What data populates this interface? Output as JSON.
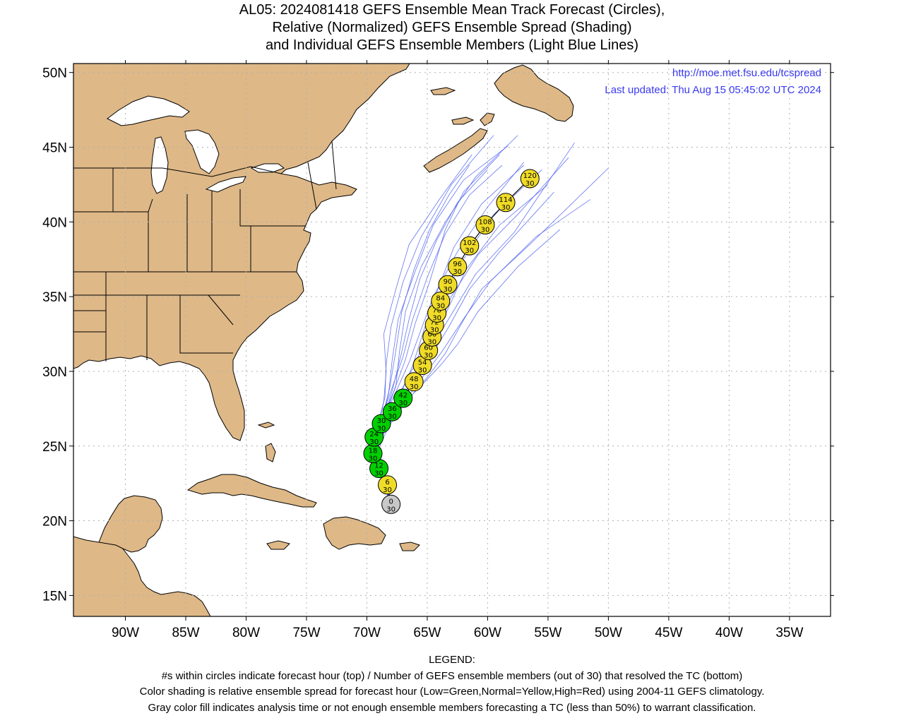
{
  "title": {
    "line1": "AL05: 2024081418 GEFS Ensemble Mean Track Forecast (Circles),",
    "line2": "Relative (Normalized) GEFS Ensemble Spread (Shading)",
    "line3": "and Individual GEFS Ensemble Members (Light Blue Lines)"
  },
  "credits": {
    "url": "http://moe.met.fsu.edu/tcspread",
    "updated": "Last updated: Thu Aug 15 05:45:02 UTC 2024"
  },
  "axes": {
    "lon_labels": [
      "90W",
      "85W",
      "80W",
      "75W",
      "70W",
      "65W",
      "60W",
      "55W",
      "50W",
      "45W",
      "40W",
      "35W"
    ],
    "lon_values": [
      -90,
      -85,
      -80,
      -75,
      -70,
      -65,
      -60,
      -55,
      -50,
      -45,
      -40,
      -35
    ],
    "lat_labels": [
      "50N",
      "45N",
      "40N",
      "35N",
      "30N",
      "25N",
      "20N",
      "15N"
    ],
    "lat_values": [
      50,
      45,
      40,
      35,
      30,
      25,
      20,
      15
    ],
    "lon_range": [
      -94.3,
      -31.6
    ],
    "lat_range": [
      13.6,
      50.6
    ],
    "grid": true
  },
  "colors": {
    "land": "#deb887",
    "ocean": "#ffffff",
    "grid": "#b0b0b0",
    "member_lines": "#4a5ef0",
    "track_line": "#000000",
    "credit_text": "#3a3af0",
    "low_spread": "#00d000",
    "normal_spread": "#f0dc28",
    "high_spread": "#ff0000",
    "analysis": "#c8c8c8"
  },
  "track": [
    {
      "hour": "0",
      "members": "30",
      "lat": 21.1,
      "lon": -68.0,
      "spread": "analysis"
    },
    {
      "hour": "6",
      "members": "30",
      "lat": 22.4,
      "lon": -68.3,
      "spread": "normal"
    },
    {
      "hour": "12",
      "members": "30",
      "lat": 23.5,
      "lon": -69.0,
      "spread": "low"
    },
    {
      "hour": "18",
      "members": "30",
      "lat": 24.5,
      "lon": -69.5,
      "spread": "low"
    },
    {
      "hour": "24",
      "members": "30",
      "lat": 25.6,
      "lon": -69.4,
      "spread": "low"
    },
    {
      "hour": "30",
      "members": "30",
      "lat": 26.5,
      "lon": -68.8,
      "spread": "low"
    },
    {
      "hour": "36",
      "members": "30",
      "lat": 27.3,
      "lon": -67.9,
      "spread": "low"
    },
    {
      "hour": "42",
      "members": "30",
      "lat": 28.2,
      "lon": -67.0,
      "spread": "low"
    },
    {
      "hour": "48",
      "members": "30",
      "lat": 29.3,
      "lon": -66.1,
      "spread": "normal"
    },
    {
      "hour": "54",
      "members": "30",
      "lat": 30.4,
      "lon": -65.4,
      "spread": "normal"
    },
    {
      "hour": "60",
      "members": "30",
      "lat": 31.4,
      "lon": -64.9,
      "spread": "normal"
    },
    {
      "hour": "66",
      "members": "30",
      "lat": 32.3,
      "lon": -64.6,
      "spread": "normal"
    },
    {
      "hour": "72",
      "members": "30",
      "lat": 33.1,
      "lon": -64.4,
      "spread": "normal"
    },
    {
      "hour": "78",
      "members": "30",
      "lat": 33.9,
      "lon": -64.2,
      "spread": "normal"
    },
    {
      "hour": "84",
      "members": "30",
      "lat": 34.7,
      "lon": -63.9,
      "spread": "normal"
    },
    {
      "hour": "90",
      "members": "30",
      "lat": 35.8,
      "lon": -63.3,
      "spread": "normal"
    },
    {
      "hour": "96",
      "members": "30",
      "lat": 37.0,
      "lon": -62.5,
      "spread": "normal"
    },
    {
      "hour": "102",
      "members": "30",
      "lat": 38.4,
      "lon": -61.5,
      "spread": "normal"
    },
    {
      "hour": "108",
      "members": "30",
      "lat": 39.8,
      "lon": -60.2,
      "spread": "normal"
    },
    {
      "hour": "114",
      "members": "30",
      "lat": 41.3,
      "lon": -58.5,
      "spread": "normal"
    },
    {
      "hour": "120",
      "members": "30",
      "lat": 42.9,
      "lon": -56.5,
      "spread": "normal"
    }
  ],
  "members": [
    [
      [
        -68.0,
        21.1
      ],
      [
        -69.3,
        24.5
      ],
      [
        -69.0,
        26.5
      ],
      [
        -68.5,
        28.3
      ],
      [
        -68.4,
        30.5
      ],
      [
        -68.0,
        33.0
      ],
      [
        -67.0,
        36.0
      ],
      [
        -65.5,
        39.0
      ],
      [
        -63.0,
        42.5
      ],
      [
        -59.5,
        45.8
      ]
    ],
    [
      [
        -68.0,
        21.1
      ],
      [
        -69.4,
        24.5
      ],
      [
        -68.8,
        26.6
      ],
      [
        -68.2,
        28.5
      ],
      [
        -67.9,
        30.8
      ],
      [
        -67.4,
        33.5
      ],
      [
        -66.0,
        36.7
      ],
      [
        -64.5,
        39.8
      ],
      [
        -62.0,
        42.8
      ],
      [
        -58.3,
        45.1
      ]
    ],
    [
      [
        -68.0,
        21.1
      ],
      [
        -69.2,
        24.5
      ],
      [
        -68.6,
        26.8
      ],
      [
        -67.6,
        29.0
      ],
      [
        -67.3,
        31.3
      ],
      [
        -66.8,
        34.0
      ],
      [
        -65.5,
        37.0
      ],
      [
        -63.5,
        40.0
      ],
      [
        -61.0,
        43.0
      ],
      [
        -57.5,
        45.8
      ]
    ],
    [
      [
        -68.0,
        21.1
      ],
      [
        -69.5,
        24.6
      ],
      [
        -69.1,
        26.4
      ],
      [
        -68.6,
        28.0
      ],
      [
        -68.4,
        30.0
      ],
      [
        -68.6,
        32.5
      ],
      [
        -67.6,
        35.5
      ],
      [
        -66.5,
        38.5
      ],
      [
        -64.0,
        41.5
      ],
      [
        -61.3,
        44.5
      ]
    ],
    [
      [
        -68.0,
        21.1
      ],
      [
        -69.3,
        24.6
      ],
      [
        -68.9,
        26.5
      ],
      [
        -67.8,
        28.6
      ],
      [
        -66.8,
        30.8
      ],
      [
        -66.0,
        33.2
      ],
      [
        -64.8,
        36.0
      ],
      [
        -63.5,
        39.5
      ],
      [
        -62.0,
        42.0
      ],
      [
        -59.0,
        44.5
      ]
    ],
    [
      [
        -68.0,
        21.1
      ],
      [
        -69.6,
        24.5
      ],
      [
        -68.9,
        26.6
      ],
      [
        -68.0,
        28.7
      ],
      [
        -67.0,
        31.0
      ],
      [
        -66.2,
        33.5
      ],
      [
        -65.0,
        36.3
      ],
      [
        -63.5,
        39.2
      ],
      [
        -61.5,
        41.8
      ],
      [
        -58.8,
        43.8
      ]
    ],
    [
      [
        -68.0,
        21.1
      ],
      [
        -69.4,
        24.4
      ],
      [
        -68.7,
        26.7
      ],
      [
        -67.5,
        28.8
      ],
      [
        -66.5,
        30.6
      ],
      [
        -65.6,
        32.6
      ],
      [
        -64.5,
        35.0
      ],
      [
        -62.5,
        38.0
      ],
      [
        -60.0,
        41.0
      ],
      [
        -57.0,
        44.0
      ]
    ],
    [
      [
        -68.0,
        21.1
      ],
      [
        -69.2,
        24.6
      ],
      [
        -68.5,
        26.6
      ],
      [
        -67.3,
        28.5
      ],
      [
        -66.0,
        30.5
      ],
      [
        -65.0,
        32.5
      ],
      [
        -63.8,
        34.8
      ],
      [
        -62.0,
        37.5
      ],
      [
        -59.5,
        40.5
      ],
      [
        -55.5,
        43.5
      ]
    ],
    [
      [
        -68.0,
        21.1
      ],
      [
        -69.5,
        24.3
      ],
      [
        -68.6,
        26.4
      ],
      [
        -67.2,
        28.2
      ],
      [
        -65.8,
        29.8
      ],
      [
        -64.8,
        31.5
      ],
      [
        -63.5,
        33.8
      ],
      [
        -61.8,
        36.8
      ],
      [
        -59.0,
        39.8
      ],
      [
        -55.0,
        42.5
      ]
    ],
    [
      [
        -68.0,
        21.1
      ],
      [
        -69.3,
        24.5
      ],
      [
        -68.4,
        26.5
      ],
      [
        -67.0,
        28.4
      ],
      [
        -65.5,
        30.3
      ],
      [
        -64.3,
        32.5
      ],
      [
        -63.0,
        35.0
      ],
      [
        -60.8,
        37.8
      ],
      [
        -57.5,
        40.5
      ],
      [
        -53.3,
        44.3
      ]
    ],
    [
      [
        -68.0,
        21.1
      ],
      [
        -69.6,
        24.4
      ],
      [
        -68.6,
        26.3
      ],
      [
        -67.4,
        28.0
      ],
      [
        -66.0,
        29.5
      ],
      [
        -64.7,
        31.0
      ],
      [
        -63.2,
        33.0
      ],
      [
        -61.5,
        35.5
      ],
      [
        -59.0,
        38.0
      ],
      [
        -54.5,
        42.0
      ]
    ],
    [
      [
        -68.0,
        21.1
      ],
      [
        -69.4,
        24.6
      ],
      [
        -68.5,
        26.5
      ],
      [
        -67.1,
        28.3
      ],
      [
        -65.7,
        30.0
      ],
      [
        -64.5,
        31.8
      ],
      [
        -63.0,
        33.8
      ],
      [
        -61.0,
        36.5
      ],
      [
        -57.8,
        39.3
      ],
      [
        -52.8,
        45.3
      ]
    ],
    [
      [
        -68.0,
        21.1
      ],
      [
        -69.3,
        24.5
      ],
      [
        -68.3,
        26.4
      ],
      [
        -66.8,
        28.1
      ],
      [
        -65.3,
        29.7
      ],
      [
        -63.8,
        31.3
      ],
      [
        -62.0,
        33.5
      ],
      [
        -59.8,
        36.0
      ],
      [
        -56.0,
        39.0
      ],
      [
        -51.5,
        41.5
      ]
    ],
    [
      [
        -68.0,
        21.1
      ],
      [
        -69.5,
        24.5
      ],
      [
        -68.4,
        26.2
      ],
      [
        -66.9,
        27.9
      ],
      [
        -65.2,
        29.3
      ],
      [
        -63.8,
        30.5
      ],
      [
        -62.5,
        31.8
      ],
      [
        -60.8,
        34.0
      ],
      [
        -57.5,
        37.0
      ],
      [
        -54.0,
        39.5
      ]
    ],
    [
      [
        -68.0,
        21.1
      ],
      [
        -69.2,
        24.5
      ],
      [
        -68.2,
        26.3
      ],
      [
        -66.7,
        28.0
      ],
      [
        -65.0,
        29.6
      ],
      [
        -63.5,
        31.2
      ],
      [
        -62.3,
        33.0
      ],
      [
        -60.5,
        35.5
      ],
      [
        -56.5,
        38.5
      ],
      [
        -50.0,
        43.6
      ]
    ],
    [
      [
        -68.0,
        21.1
      ],
      [
        -69.4,
        24.5
      ],
      [
        -68.7,
        26.6
      ],
      [
        -67.9,
        28.7
      ],
      [
        -67.2,
        31.0
      ],
      [
        -66.5,
        33.5
      ],
      [
        -65.6,
        36.2
      ],
      [
        -64.2,
        38.8
      ],
      [
        -62.5,
        41.3
      ],
      [
        -60.0,
        43.5
      ]
    ],
    [
      [
        -68.0,
        21.1
      ],
      [
        -69.5,
        24.6
      ],
      [
        -68.8,
        26.7
      ],
      [
        -68.1,
        28.9
      ],
      [
        -67.6,
        31.4
      ],
      [
        -67.1,
        34.0
      ],
      [
        -66.1,
        36.8
      ],
      [
        -64.8,
        39.5
      ],
      [
        -63.2,
        41.8
      ],
      [
        -61.5,
        43.8
      ]
    ],
    [
      [
        -68.0,
        21.1
      ],
      [
        -69.3,
        24.4
      ],
      [
        -68.5,
        26.4
      ],
      [
        -67.3,
        28.3
      ],
      [
        -66.2,
        30.4
      ],
      [
        -65.3,
        32.7
      ],
      [
        -64.2,
        35.3
      ],
      [
        -62.8,
        38.3
      ],
      [
        -60.5,
        41.2
      ],
      [
        -57.0,
        43.8
      ]
    ]
  ]
}
